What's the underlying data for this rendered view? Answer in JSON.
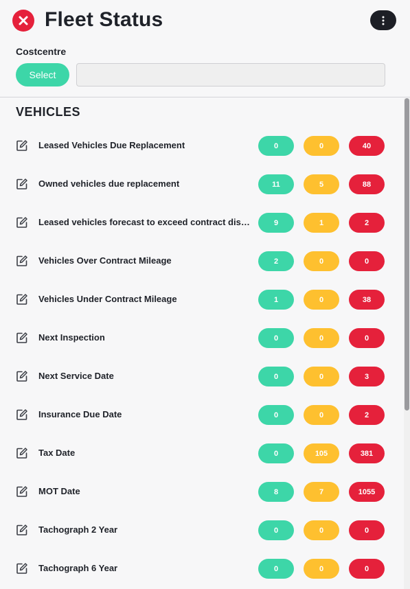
{
  "header": {
    "title": "Fleet Status",
    "costcentre_label": "Costcentre",
    "select_label": "Select",
    "costcentre_value": ""
  },
  "section": {
    "title": "VEHICLES"
  },
  "colors": {
    "green": "#3dd6a8",
    "amber": "#fec02f",
    "red": "#e5213b",
    "dark": "#1d1f26"
  },
  "rows": [
    {
      "label": "Leased Vehicles Due Replacement",
      "green": "0",
      "amber": "0",
      "red": "40"
    },
    {
      "label": "Owned vehicles due replacement",
      "green": "11",
      "amber": "5",
      "red": "88"
    },
    {
      "label": "Leased vehicles forecast to exceed contract distance",
      "green": "9",
      "amber": "1",
      "red": "2"
    },
    {
      "label": "Vehicles Over Contract Mileage",
      "green": "2",
      "amber": "0",
      "red": "0"
    },
    {
      "label": "Vehicles Under Contract Mileage",
      "green": "1",
      "amber": "0",
      "red": "38"
    },
    {
      "label": "Next Inspection",
      "green": "0",
      "amber": "0",
      "red": "0"
    },
    {
      "label": "Next Service Date",
      "green": "0",
      "amber": "0",
      "red": "3"
    },
    {
      "label": "Insurance Due Date",
      "green": "0",
      "amber": "0",
      "red": "2"
    },
    {
      "label": "Tax Date",
      "green": "0",
      "amber": "105",
      "red": "381"
    },
    {
      "label": "MOT Date",
      "green": "8",
      "amber": "7",
      "red": "1055"
    },
    {
      "label": "Tachograph 2 Year",
      "green": "0",
      "amber": "0",
      "red": "0"
    },
    {
      "label": "Tachograph 6 Year",
      "green": "0",
      "amber": "0",
      "red": "0"
    }
  ]
}
